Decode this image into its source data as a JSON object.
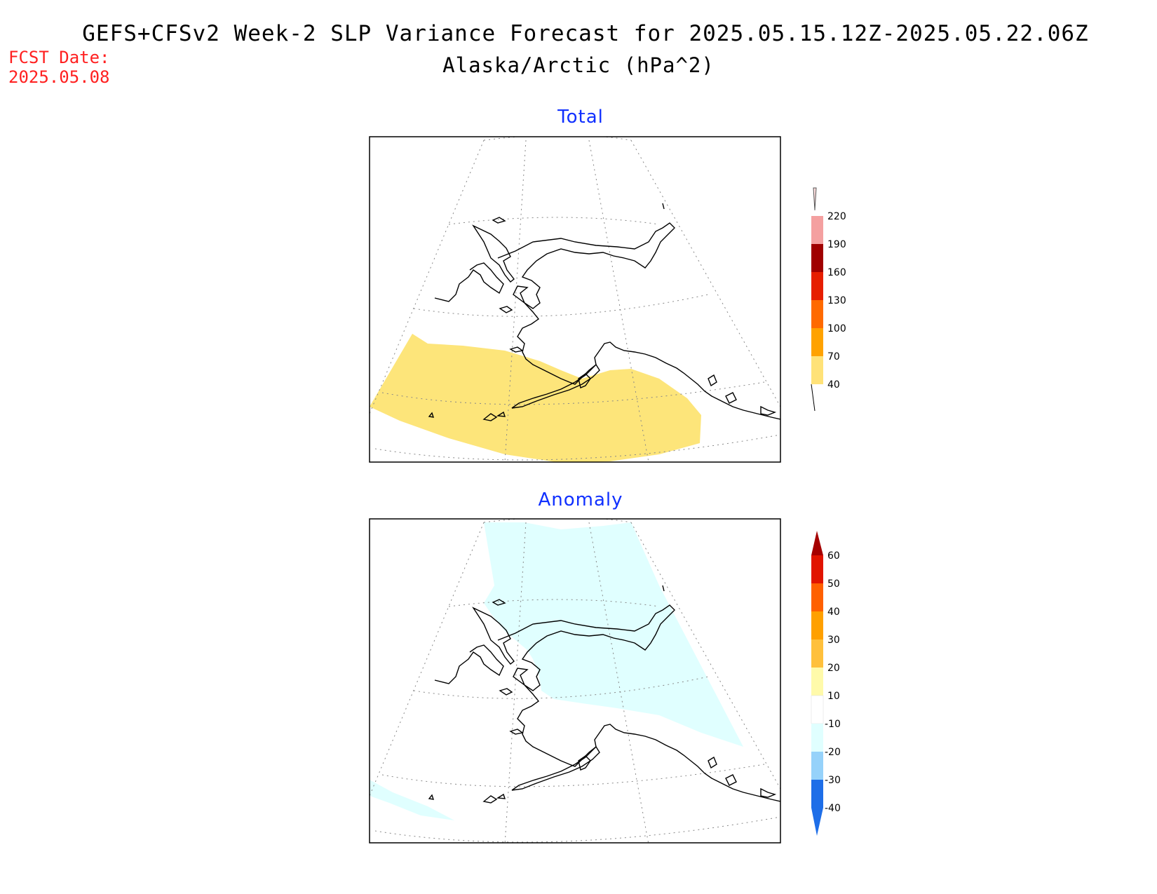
{
  "title": {
    "line1": "GEFS+CFSv2 Week-2 SLP Variance Forecast for 2025.05.15.12Z-2025.05.22.06Z",
    "line2": "Alaska/Arctic (hPa^2)"
  },
  "fcst_date": {
    "label": "FCST Date:",
    "value": "2025.05.08"
  },
  "panels": [
    {
      "title": "Total",
      "colorbar": {
        "levels": [
          "40",
          "70",
          "100",
          "130",
          "160",
          "190",
          "220"
        ],
        "colors": [
          "#ffe278",
          "#ffa200",
          "#ff6a00",
          "#e61e00",
          "#a00000",
          "#f4a0a0",
          "#ffe0e0"
        ]
      },
      "shading": [
        {
          "range": "40-70",
          "color": "#fde57a",
          "region": "Bering Sea / Gulf of Alaska / North Pacific"
        }
      ]
    },
    {
      "title": "Anomaly",
      "colorbar": {
        "levels": [
          "-40",
          "-30",
          "-20",
          "-10",
          "10",
          "20",
          "30",
          "40",
          "50",
          "60"
        ],
        "colors": [
          "#1e6ee8",
          "#3c96f0",
          "#96d2fa",
          "#e0ffff",
          "#ffffff",
          "#fffaaa",
          "#ffe878",
          "#ffc03c",
          "#ffa000",
          "#ff6000",
          "#e11400",
          "#a50000"
        ]
      },
      "shading": [
        {
          "range": "-20 to -10",
          "color": "#e0ffff",
          "region": "Arctic Ocean / Northern Alaska"
        }
      ]
    }
  ]
}
